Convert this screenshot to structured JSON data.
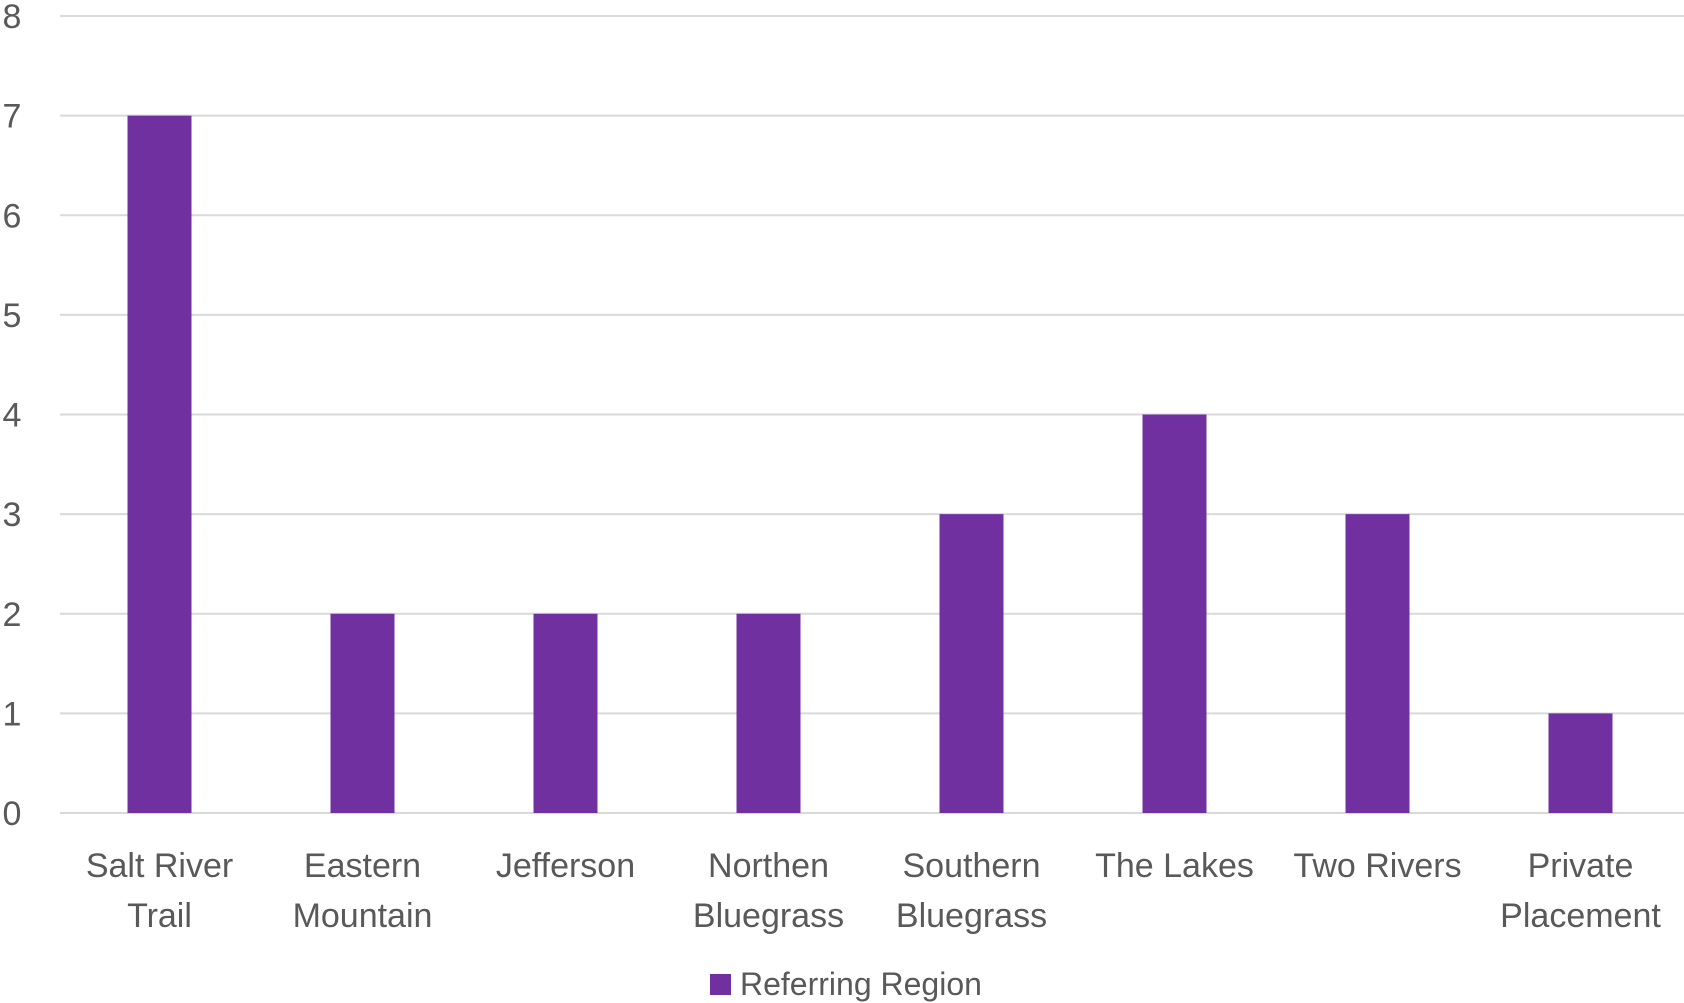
{
  "chart_data": {
    "type": "bar",
    "title": "",
    "xlabel": "",
    "ylabel": "",
    "categories": [
      [
        "Salt River",
        "Trail"
      ],
      [
        "Eastern",
        "Mountain"
      ],
      [
        "Jefferson"
      ],
      [
        "Northen",
        "Bluegrass"
      ],
      [
        "Southern",
        "Bluegrass"
      ],
      [
        "The Lakes"
      ],
      [
        "Two Rivers"
      ],
      [
        "Private",
        "Placement"
      ]
    ],
    "series": [
      {
        "name": "Referring Region",
        "values": [
          7,
          2,
          2,
          2,
          3,
          4,
          3,
          1
        ],
        "color": "#7030a0"
      }
    ],
    "ylim": [
      0,
      8
    ],
    "yticks": [
      0,
      1,
      2,
      3,
      4,
      5,
      6,
      7,
      8
    ],
    "grid": true,
    "legend_position": "bottom"
  }
}
